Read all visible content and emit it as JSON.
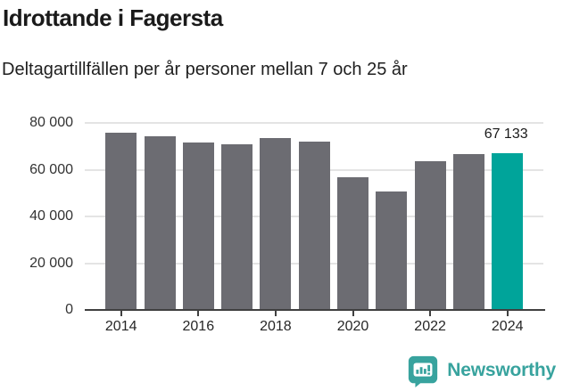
{
  "header": {
    "title": "Idrottande i Fagersta",
    "subtitle": "Deltagartillfällen per år personer mellan 7 och 25 år"
  },
  "chart_data": {
    "type": "bar",
    "title": "Idrottande i Fagersta",
    "subtitle": "Deltagartillfällen per år personer mellan 7 och 25 år",
    "categories": [
      "2014",
      "2015",
      "2016",
      "2017",
      "2018",
      "2019",
      "2020",
      "2021",
      "2022",
      "2023",
      "2024"
    ],
    "values": [
      76000,
      74100,
      71600,
      70900,
      73700,
      72000,
      56700,
      50700,
      63600,
      66600,
      67133
    ],
    "highlight": {
      "index": 10,
      "label": "67 133"
    },
    "y_ticks": [
      {
        "value": 0,
        "label": "0"
      },
      {
        "value": 20000,
        "label": "20 000"
      },
      {
        "value": 40000,
        "label": "40 000"
      },
      {
        "value": 60000,
        "label": "60 000"
      },
      {
        "value": 80000,
        "label": "80 000"
      }
    ],
    "x_tick_labels": [
      "2014",
      "2016",
      "2018",
      "2020",
      "2022",
      "2024"
    ],
    "xlabel": "",
    "ylabel": "",
    "ylim": [
      0,
      80000
    ],
    "grid": true,
    "legend_position": "none",
    "colors": {
      "bar": "#6c6c72",
      "highlight": "#00a49a",
      "gridline": "#e4e4e4",
      "axis": "#404040",
      "text": "#1a1a1a"
    }
  },
  "footer": {
    "brand": "Newsworthy",
    "brand_color": "#38a39e",
    "logo_icon": "bar-chart-speech-bubble-icon"
  }
}
